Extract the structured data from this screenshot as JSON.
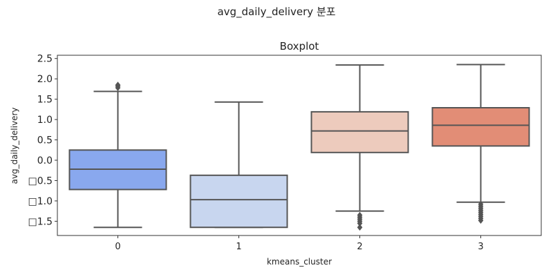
{
  "figure": {
    "suptitle": "avg_daily_delivery 분포"
  },
  "chart_data": {
    "type": "box",
    "title": "Boxplot",
    "xlabel": "kmeans_cluster",
    "ylabel": "avg_daily_delivery",
    "ylim": [
      -1.85,
      2.58
    ],
    "categories": [
      "0",
      "1",
      "2",
      "3"
    ],
    "y_ticks": [
      2.5,
      2.0,
      1.5,
      1.0,
      0.5,
      0.0,
      -0.5,
      -1.0,
      -1.5
    ],
    "y_tick_labels": [
      "2.5",
      "2.0",
      "1.5",
      "1.0",
      "0.5",
      "0.0",
      "□0.5",
      "□1.0",
      "□1.5"
    ],
    "boxes": [
      {
        "category": "0",
        "whisker_low": -1.65,
        "q1": -0.72,
        "median": -0.22,
        "q3": 0.25,
        "whisker_high": 1.69,
        "outliers": [
          1.78,
          1.82,
          1.85
        ],
        "color": "#89a8ee"
      },
      {
        "category": "1",
        "whisker_low": -1.65,
        "q1": -1.65,
        "median": -0.97,
        "q3": -0.37,
        "whisker_high": 1.43,
        "outliers": [],
        "color": "#c8d6ef"
      },
      {
        "category": "2",
        "whisker_low": -1.25,
        "q1": 0.19,
        "median": 0.72,
        "q3": 1.19,
        "whisker_high": 2.34,
        "outliers": [
          -1.35,
          -1.4,
          -1.45,
          -1.5,
          -1.55,
          -1.65
        ],
        "color": "#edcbbd"
      },
      {
        "category": "3",
        "whisker_low": -1.03,
        "q1": 0.35,
        "median": 0.86,
        "q3": 1.29,
        "whisker_high": 2.35,
        "outliers": [
          -1.08,
          -1.13,
          -1.18,
          -1.23,
          -1.28,
          -1.33,
          -1.38,
          -1.43,
          -1.48
        ],
        "color": "#e28d76"
      }
    ],
    "grid": false,
    "legend": "none"
  }
}
